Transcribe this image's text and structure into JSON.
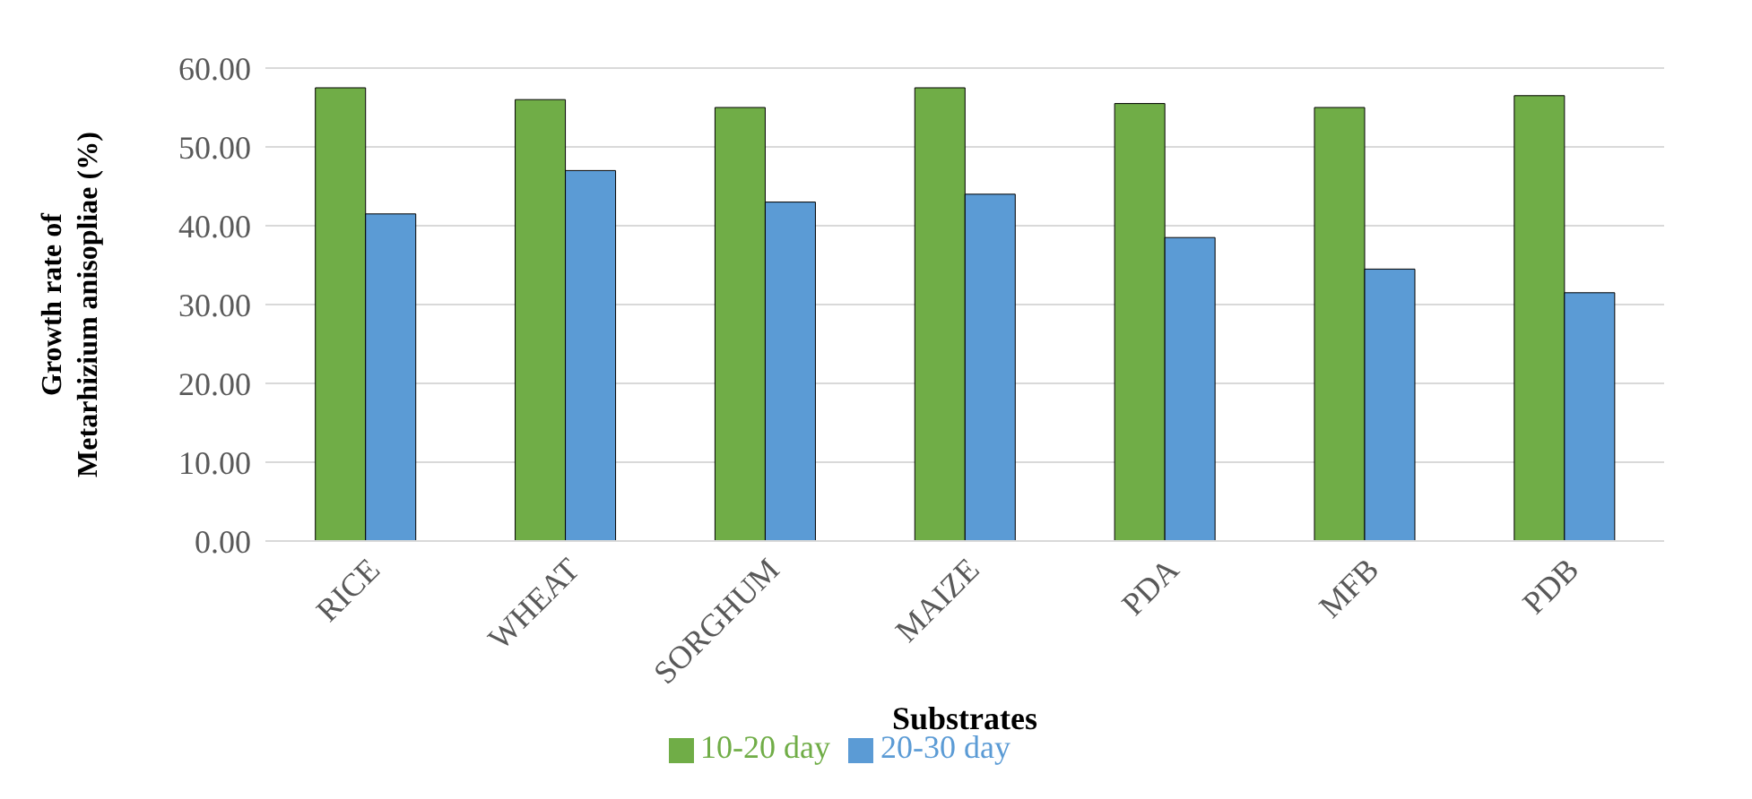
{
  "chart_data": {
    "type": "bar",
    "xlabel": "Substrates",
    "ylabel": "Growth rate of Metarhizium anisopliae (%)",
    "categories": [
      "RICE",
      "WHEAT",
      "SORGHUM",
      "MAIZE",
      "PDA",
      "MFB",
      "PDB"
    ],
    "series": [
      {
        "name": "10-20 day",
        "color": "#70ad47",
        "values": [
          57.5,
          56,
          55,
          57.5,
          55.5,
          55,
          56.5
        ]
      },
      {
        "name": "20-30 day",
        "color": "#5b9bd5",
        "values": [
          41.5,
          47,
          43,
          44,
          38.5,
          34.5,
          31.5
        ]
      }
    ],
    "ylim": [
      0,
      60
    ],
    "yticks": [
      {
        "value": 0,
        "label": "0.00"
      },
      {
        "value": 10,
        "label": "10.00"
      },
      {
        "value": 20,
        "label": "20.00"
      },
      {
        "value": 30,
        "label": "30.00"
      },
      {
        "value": 40,
        "label": "40.00"
      },
      {
        "value": 50,
        "label": "50.00"
      },
      {
        "value": 60,
        "label": "60.00"
      }
    ],
    "grid": "y",
    "legend": "bottom"
  }
}
